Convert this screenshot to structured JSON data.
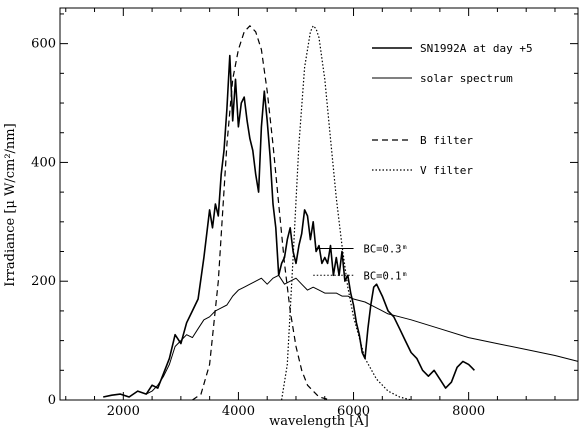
{
  "chart_data": {
    "type": "line",
    "xlabel": "wavelength [Å]",
    "ylabel": "Irradiance [μ W/cm²/nm]",
    "xlim": [
      900,
      9900
    ],
    "ylim": [
      0,
      660
    ],
    "x_ticks": [
      2000,
      4000,
      6000,
      8000
    ],
    "y_ticks": [
      0,
      200,
      400,
      600
    ],
    "x_tick_labels": [
      "2000",
      "4000",
      "6000",
      "8000"
    ],
    "y_tick_labels": [
      "0",
      "200",
      "400",
      "600"
    ],
    "grid": false,
    "legend_position": "top-right",
    "series": [
      {
        "name": "SN1992A at day +5",
        "style": "solid-bold",
        "color": "#000000",
        "x": [
          1650,
          1800,
          1950,
          2100,
          2250,
          2400,
          2500,
          2600,
          2700,
          2800,
          2900,
          3000,
          3100,
          3200,
          3300,
          3400,
          3500,
          3550,
          3600,
          3650,
          3700,
          3750,
          3800,
          3850,
          3900,
          3950,
          4000,
          4050,
          4100,
          4150,
          4200,
          4250,
          4300,
          4350,
          4400,
          4450,
          4500,
          4550,
          4600,
          4650,
          4700,
          4750,
          4800,
          4850,
          4900,
          4950,
          5000,
          5050,
          5100,
          5150,
          5200,
          5250,
          5300,
          5350,
          5400,
          5450,
          5500,
          5550,
          5600,
          5650,
          5700,
          5750,
          5800,
          5850,
          5900,
          5950,
          6000,
          6050,
          6100,
          6150,
          6200,
          6250,
          6300,
          6350,
          6400,
          6450,
          6500,
          6600,
          6700,
          6800,
          6900,
          7000,
          7100,
          7200,
          7300,
          7400,
          7500,
          7600,
          7700,
          7800,
          7900,
          8000,
          8050,
          8100
        ],
        "y": [
          5,
          8,
          10,
          5,
          15,
          10,
          25,
          20,
          45,
          70,
          110,
          95,
          130,
          150,
          170,
          240,
          320,
          290,
          330,
          310,
          380,
          420,
          490,
          580,
          470,
          540,
          460,
          500,
          510,
          470,
          440,
          420,
          380,
          350,
          460,
          520,
          470,
          410,
          330,
          290,
          210,
          230,
          240,
          270,
          290,
          250,
          230,
          260,
          280,
          320,
          310,
          270,
          300,
          250,
          260,
          230,
          240,
          230,
          260,
          210,
          240,
          210,
          250,
          200,
          210,
          180,
          160,
          130,
          110,
          80,
          70,
          120,
          160,
          190,
          195,
          185,
          175,
          150,
          140,
          120,
          100,
          80,
          70,
          50,
          40,
          50,
          35,
          20,
          30,
          55,
          65,
          60,
          55,
          50
        ]
      },
      {
        "name": "solar spectrum",
        "style": "solid",
        "color": "#000000",
        "x": [
          2400,
          2500,
          2600,
          2700,
          2800,
          2900,
          3000,
          3100,
          3200,
          3300,
          3400,
          3500,
          3600,
          3700,
          3800,
          3900,
          4000,
          4100,
          4200,
          4300,
          4400,
          4500,
          4600,
          4700,
          4800,
          4900,
          5000,
          5100,
          5200,
          5300,
          5400,
          5500,
          5600,
          5700,
          5800,
          5900,
          6000,
          6200,
          6400,
          6600,
          6800,
          7000,
          7500,
          8000,
          8500,
          9000,
          9500,
          9900
        ],
        "y": [
          10,
          15,
          25,
          40,
          60,
          90,
          100,
          110,
          105,
          120,
          135,
          140,
          150,
          155,
          160,
          175,
          185,
          190,
          195,
          200,
          205,
          195,
          205,
          210,
          195,
          200,
          205,
          195,
          185,
          190,
          185,
          180,
          180,
          180,
          175,
          175,
          170,
          165,
          155,
          145,
          140,
          135,
          120,
          105,
          95,
          85,
          75,
          65
        ]
      },
      {
        "name": "B filter",
        "style": "dashed",
        "color": "#000000",
        "x": [
          3200,
          3350,
          3500,
          3650,
          3800,
          3900,
          4000,
          4100,
          4200,
          4300,
          4400,
          4500,
          4600,
          4700,
          4800,
          4900,
          5000,
          5100,
          5200,
          5400,
          5600
        ],
        "y": [
          0,
          10,
          60,
          200,
          430,
          540,
          590,
          620,
          630,
          620,
          590,
          520,
          430,
          330,
          230,
          150,
          90,
          50,
          25,
          5,
          0
        ]
      },
      {
        "name": "V filter",
        "style": "dotted",
        "color": "#000000",
        "x": [
          4750,
          4850,
          4950,
          5050,
          5150,
          5250,
          5300,
          5350,
          5400,
          5500,
          5600,
          5700,
          5800,
          5900,
          6000,
          6200,
          6400,
          6600,
          6800,
          7000
        ],
        "y": [
          0,
          60,
          240,
          430,
          560,
          620,
          630,
          625,
          610,
          540,
          440,
          340,
          260,
          190,
          140,
          70,
          35,
          15,
          5,
          0
        ]
      }
    ],
    "annotations": [
      {
        "text": "BC=0.3ᵐ",
        "x1": 5350,
        "x2": 6000,
        "y": 255,
        "style": "solid"
      },
      {
        "text": "BC=0.1ᵐ",
        "x1": 5300,
        "x2": 6000,
        "y": 210,
        "style": "dotted"
      }
    ]
  }
}
